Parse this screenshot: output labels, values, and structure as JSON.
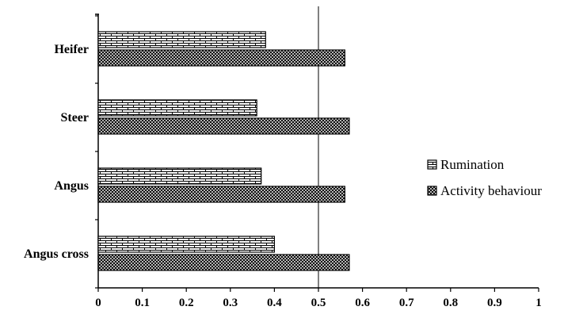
{
  "chart_data": {
    "type": "bar",
    "orientation": "horizontal",
    "title": "",
    "xlabel": "",
    "ylabel": "",
    "categories": [
      "Heifer",
      "Steer",
      "Angus",
      "Angus cross"
    ],
    "series": [
      {
        "name": "Rumination",
        "values": [
          0.38,
          0.36,
          0.37,
          0.4
        ],
        "pattern": "brick"
      },
      {
        "name": "Activity behaviour",
        "values": [
          0.56,
          0.57,
          0.56,
          0.57
        ],
        "pattern": "dense-cross"
      }
    ],
    "xlim": [
      0,
      1
    ],
    "xticks": [
      "0",
      "0.1",
      "0.2",
      "0.3",
      "0.4",
      "0.5",
      "0.6",
      "0.7",
      "0.8",
      "0.9",
      "1"
    ],
    "reference_line": 0.5,
    "grid": false,
    "legend_position": "right"
  }
}
